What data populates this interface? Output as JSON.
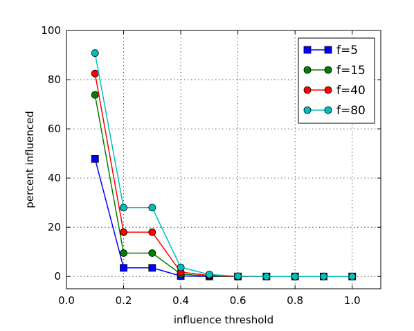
{
  "chart_data": {
    "type": "line",
    "title": "",
    "xlabel": "influence threshold",
    "ylabel": "percent influenced",
    "xlim": [
      0.0,
      1.1
    ],
    "ylim": [
      -5,
      100
    ],
    "xticks": [
      "0.0",
      "0.2",
      "0.4",
      "0.6",
      "0.8",
      "1.0"
    ],
    "yticks": [
      "0",
      "20",
      "40",
      "60",
      "80",
      "100"
    ],
    "grid": true,
    "legend_position": "top-right",
    "x": [
      0.1,
      0.2,
      0.3,
      0.4,
      0.5,
      0.6,
      0.7,
      0.8,
      0.9,
      1.0
    ],
    "series": [
      {
        "name": "f=5",
        "marker": "square",
        "color": "#0000ff",
        "values": [
          47.8,
          3.5,
          3.5,
          0.2,
          0.0,
          0.0,
          0.0,
          0.0,
          0.0,
          0.0
        ]
      },
      {
        "name": "f=15",
        "marker": "circle",
        "color": "#008000",
        "values": [
          73.8,
          9.5,
          9.5,
          1.0,
          0.1,
          0.0,
          0.0,
          0.0,
          0.0,
          0.0
        ]
      },
      {
        "name": "f=40",
        "marker": "circle",
        "color": "#ff0000",
        "values": [
          82.5,
          18.0,
          18.0,
          1.8,
          0.4,
          0.0,
          0.0,
          0.0,
          0.0,
          0.0
        ]
      },
      {
        "name": "f=80",
        "marker": "circle",
        "color": "#00bfbf",
        "values": [
          90.8,
          28.0,
          28.0,
          3.7,
          0.8,
          0.1,
          0.0,
          0.0,
          0.0,
          0.0
        ]
      }
    ]
  }
}
